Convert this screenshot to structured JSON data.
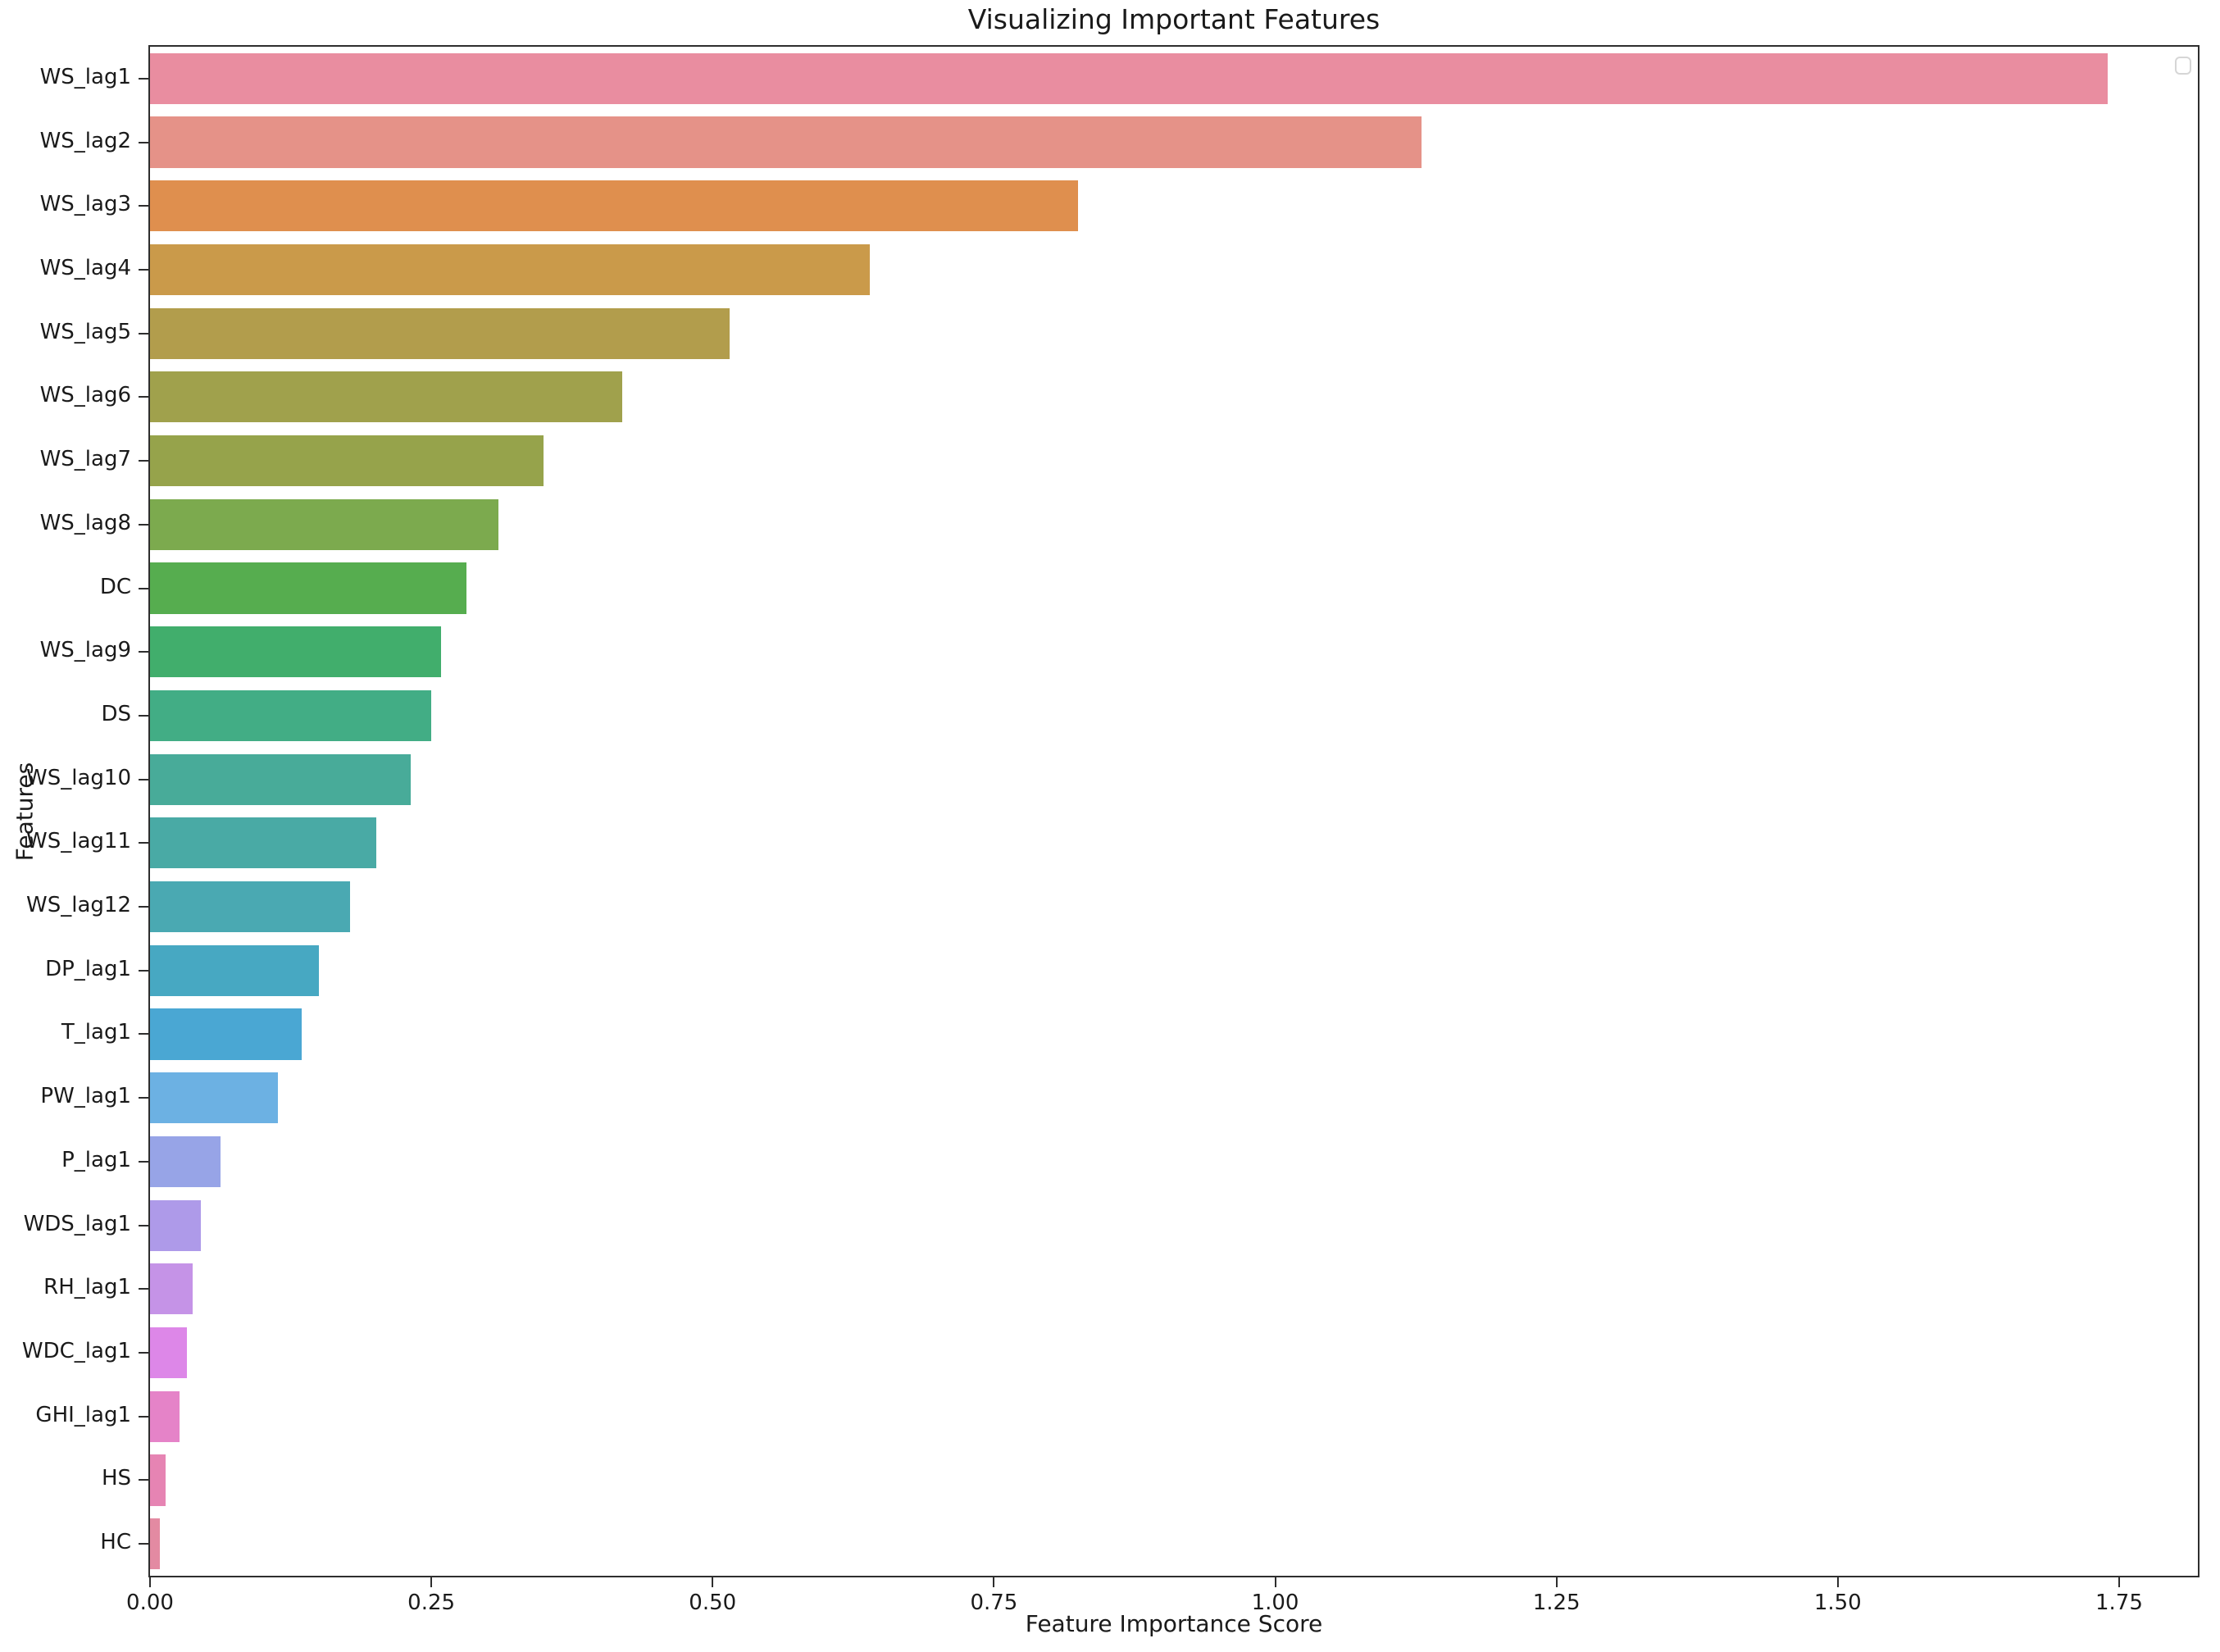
{
  "chart_data": {
    "type": "bar",
    "orientation": "horizontal",
    "title": "Visualizing Important Features",
    "xlabel": "Feature Importance Score",
    "ylabel": "Features",
    "xlim": [
      0,
      1.82
    ],
    "xticks": [
      0,
      0.25,
      0.5,
      0.75,
      1.0,
      1.25,
      1.5,
      1.75
    ],
    "xtick_labels": [
      "0.00",
      "0.25",
      "0.50",
      "0.75",
      "1.00",
      "1.25",
      "1.50",
      "1.75"
    ],
    "grid": false,
    "legend": {
      "visible": true,
      "position": "upper right",
      "entries": []
    },
    "categories": [
      "WS_lag1",
      "WS_lag2",
      "WS_lag3",
      "WS_lag4",
      "WS_lag5",
      "WS_lag6",
      "WS_lag7",
      "WS_lag8",
      "DC",
      "WS_lag9",
      "DS",
      "WS_lag10",
      "WS_lag11",
      "WS_lag12",
      "DP_lag1",
      "T_lag1",
      "PW_lag1",
      "P_lag1",
      "WDS_lag1",
      "RH_lag1",
      "WDC_lag1",
      "GHI_lag1",
      "HS",
      "HC"
    ],
    "values": [
      1.74,
      1.13,
      0.825,
      0.64,
      0.515,
      0.42,
      0.35,
      0.31,
      0.281,
      0.259,
      0.25,
      0.232,
      0.201,
      0.178,
      0.15,
      0.135,
      0.114,
      0.063,
      0.045,
      0.038,
      0.033,
      0.026,
      0.014,
      0.009
    ],
    "bar_colors": [
      "#e98da0",
      "#e59288",
      "#df8f4e",
      "#ca9a4a",
      "#b29d4c",
      "#a0a14c",
      "#96a34b",
      "#7caa4e",
      "#56ad4f",
      "#41ae6c",
      "#42ad85",
      "#48ab99",
      "#49aaa5",
      "#4aa9b2",
      "#47a8c2",
      "#4aa7d3",
      "#6cb1e3",
      "#97a4e7",
      "#ae9ae9",
      "#c593e7",
      "#dd87e8",
      "#e583c8",
      "#e684b3",
      "#e38aa2"
    ],
    "spine_color": "#2e2e2e",
    "text_color": "#1a1a1a"
  }
}
